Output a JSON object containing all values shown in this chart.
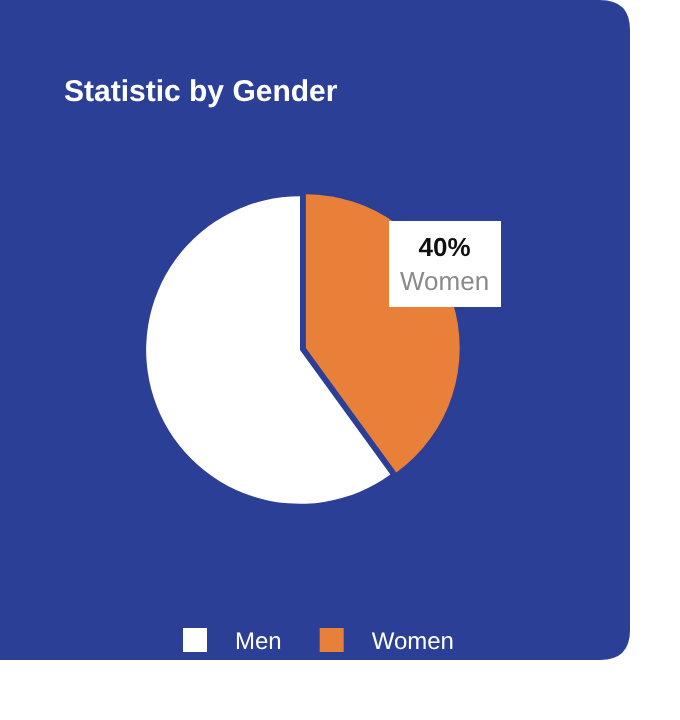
{
  "chart_data": {
    "type": "pie",
    "title": "Statistic by Gender",
    "categories": [
      "Men",
      "Women"
    ],
    "values": [
      60,
      40
    ],
    "colors": [
      "#ffffff",
      "#e8803a"
    ],
    "value_labels": [
      null,
      "40%"
    ],
    "legend": "bottom"
  }
}
